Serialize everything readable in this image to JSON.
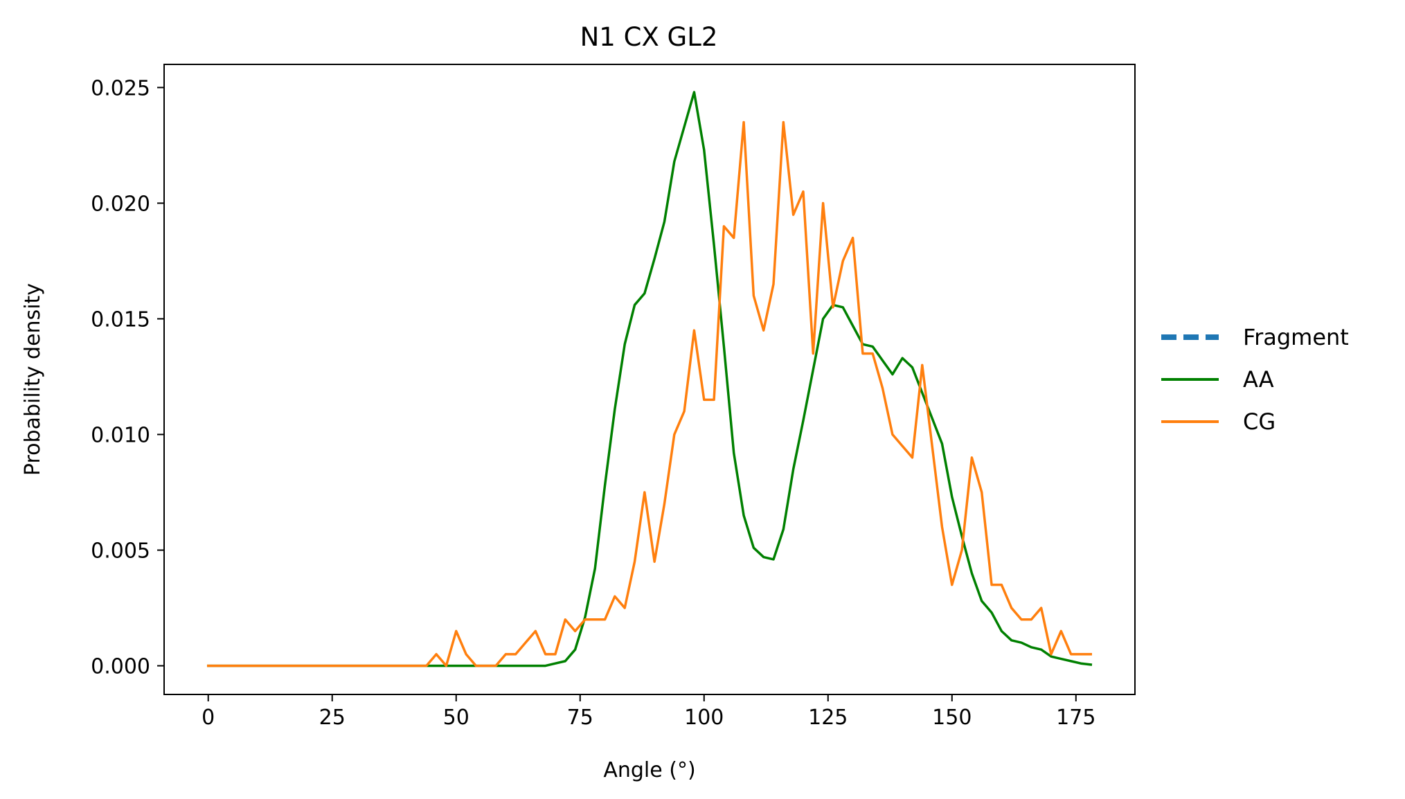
{
  "chart_data": {
    "type": "line",
    "title": "N1 CX GL2",
    "xlabel": "Angle (°)",
    "ylabel": "Probability density",
    "xlim": [
      -8.9,
      186.9
    ],
    "ylim": [
      -0.00124,
      0.026
    ],
    "xticks": [
      0,
      25,
      50,
      75,
      100,
      125,
      150,
      175
    ],
    "xtick_labels": [
      "0",
      "25",
      "50",
      "75",
      "100",
      "125",
      "150",
      "175"
    ],
    "yticks": [
      0.0,
      0.005,
      0.01,
      0.015,
      0.02,
      0.025
    ],
    "ytick_labels": [
      "0.000",
      "0.005",
      "0.010",
      "0.015",
      "0.020",
      "0.025"
    ],
    "grid": false,
    "legend_position": "outside-right",
    "legend": [
      {
        "name": "Fragment",
        "color": "#1f77b4",
        "dash": true
      },
      {
        "name": "AA",
        "color": "#008000",
        "dash": false
      },
      {
        "name": "CG",
        "color": "#ff7f0e",
        "dash": false
      }
    ],
    "series": [
      {
        "name": "Fragment",
        "color": "#1f77b4",
        "style": "dashed",
        "x": [],
        "y": []
      },
      {
        "name": "AA",
        "color": "#008000",
        "style": "solid",
        "x": [
          0,
          2,
          4,
          6,
          8,
          10,
          12,
          14,
          16,
          18,
          20,
          22,
          24,
          26,
          28,
          30,
          32,
          34,
          36,
          38,
          40,
          42,
          44,
          46,
          48,
          50,
          52,
          54,
          56,
          58,
          60,
          62,
          64,
          66,
          68,
          70,
          72,
          74,
          76,
          78,
          80,
          82,
          84,
          86,
          88,
          90,
          92,
          94,
          96,
          98,
          100,
          102,
          104,
          106,
          108,
          110,
          112,
          114,
          116,
          118,
          120,
          122,
          124,
          126,
          128,
          130,
          132,
          134,
          136,
          138,
          140,
          142,
          144,
          146,
          148,
          150,
          152,
          154,
          156,
          158,
          160,
          162,
          164,
          166,
          168,
          170,
          172,
          174,
          176,
          178
        ],
        "y": [
          0,
          0,
          0,
          0,
          0,
          0,
          0,
          0,
          0,
          0,
          0,
          0,
          0,
          0,
          0,
          0,
          0,
          0,
          0,
          0,
          0,
          0,
          0,
          0,
          0,
          0,
          0,
          0,
          0,
          0,
          0,
          0,
          0,
          0,
          0,
          0.0001,
          0.0002,
          0.0007,
          0.0021,
          0.0042,
          0.0078,
          0.0111,
          0.0139,
          0.0156,
          0.0161,
          0.0176,
          0.0192,
          0.0218,
          0.0233,
          0.0248,
          0.0223,
          0.0182,
          0.0138,
          0.0092,
          0.0065,
          0.0051,
          0.0047,
          0.0046,
          0.0059,
          0.0085,
          0.0106,
          0.0128,
          0.015,
          0.0156,
          0.0155,
          0.0147,
          0.0139,
          0.0138,
          0.0132,
          0.0126,
          0.0133,
          0.0129,
          0.0118,
          0.0107,
          0.0096,
          0.0073,
          0.0056,
          0.004,
          0.0028,
          0.0023,
          0.0015,
          0.0011,
          0.001,
          0.0008,
          0.0007,
          0.0004,
          0.0003,
          0.0002,
          0.0001,
          5e-05
        ]
      },
      {
        "name": "CG",
        "color": "#ff7f0e",
        "style": "solid",
        "x": [
          0,
          2,
          4,
          6,
          8,
          10,
          12,
          14,
          16,
          18,
          20,
          22,
          24,
          26,
          28,
          30,
          32,
          34,
          36,
          38,
          40,
          42,
          44,
          46,
          48,
          50,
          52,
          54,
          56,
          58,
          60,
          62,
          64,
          66,
          68,
          70,
          72,
          74,
          76,
          78,
          80,
          82,
          84,
          86,
          88,
          90,
          92,
          94,
          96,
          98,
          100,
          102,
          104,
          106,
          108,
          110,
          112,
          114,
          116,
          118,
          120,
          122,
          124,
          126,
          128,
          130,
          132,
          134,
          136,
          138,
          140,
          142,
          144,
          146,
          148,
          150,
          152,
          154,
          156,
          158,
          160,
          162,
          164,
          166,
          168,
          170,
          172,
          174,
          176,
          178
        ],
        "y": [
          0,
          0,
          0,
          0,
          0,
          0,
          0,
          0,
          0,
          0,
          0,
          0,
          0,
          0,
          0,
          0,
          0,
          0,
          0,
          0,
          0,
          0,
          0,
          0.0005,
          0,
          0.0015,
          0.0005,
          0,
          0,
          0,
          0.0005,
          0.0005,
          0.001,
          0.0015,
          0.0005,
          0.0005,
          0.002,
          0.0015,
          0.002,
          0.002,
          0.002,
          0.003,
          0.0025,
          0.0045,
          0.0075,
          0.0045,
          0.007,
          0.01,
          0.011,
          0.0145,
          0.0115,
          0.0115,
          0.019,
          0.0185,
          0.0235,
          0.016,
          0.0145,
          0.0165,
          0.0235,
          0.0195,
          0.0205,
          0.0135,
          0.02,
          0.0155,
          0.0175,
          0.0185,
          0.0135,
          0.0135,
          0.012,
          0.01,
          0.0095,
          0.009,
          0.013,
          0.0095,
          0.006,
          0.0035,
          0.005,
          0.009,
          0.0075,
          0.0035,
          0.0035,
          0.0025,
          0.002,
          0.002,
          0.0025,
          0.0005,
          0.0015,
          0.0005,
          0.0005,
          0.0005
        ]
      }
    ]
  }
}
